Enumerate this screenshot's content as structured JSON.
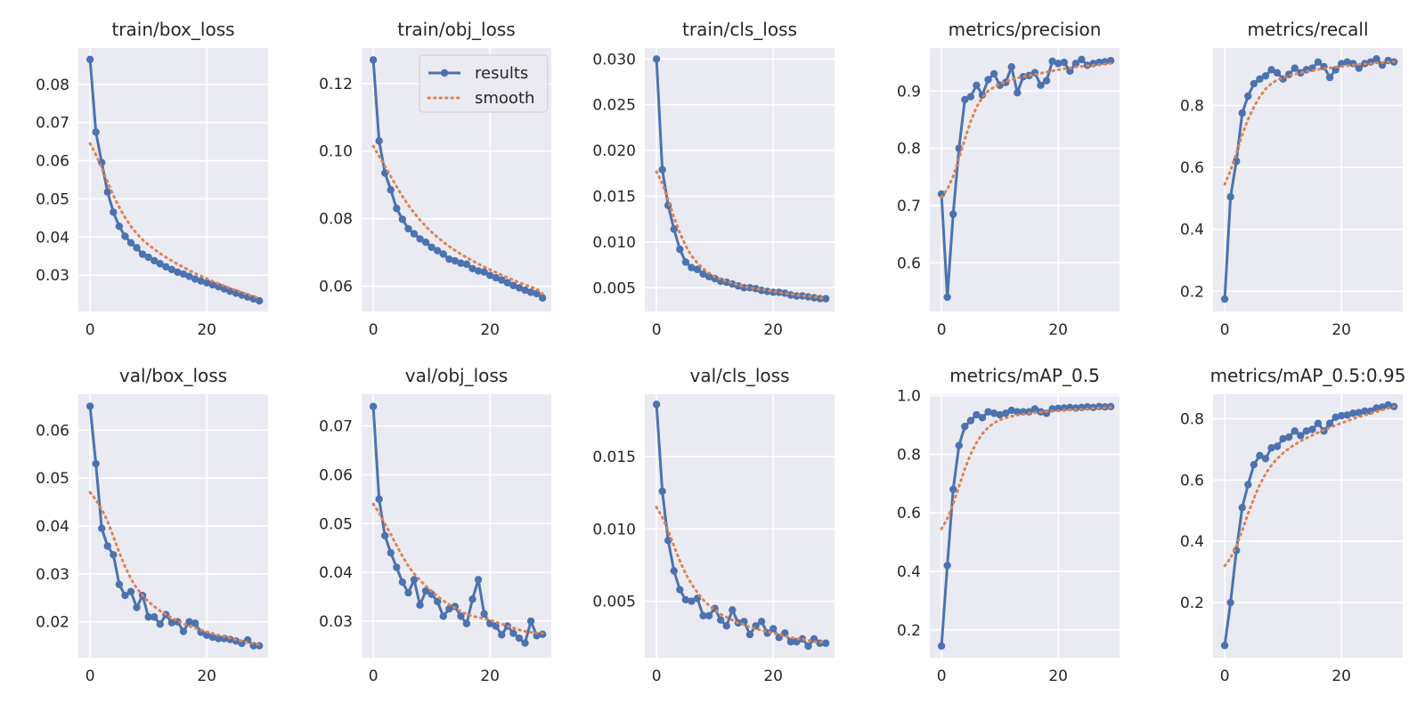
{
  "colors": {
    "results": "#4c72b0",
    "smooth": "#dd8452",
    "panel_bg": "#eaeaf2",
    "grid": "#ffffff",
    "text": "#262626"
  },
  "legend": {
    "results_label": "results",
    "smooth_label": "smooth",
    "placement": "top-right of train/obj_loss"
  },
  "chart_data": [
    {
      "type": "line",
      "title": "train/box_loss",
      "xlim": [
        -2,
        30.5
      ],
      "ylim": [
        0.0205,
        0.0895
      ],
      "xticks": [
        0,
        20
      ],
      "yticks": [
        0.03,
        0.04,
        0.05,
        0.06,
        0.07,
        0.08
      ],
      "ytick_labels": [
        "0.03",
        "0.04",
        "0.05",
        "0.06",
        "0.07",
        "0.08"
      ],
      "series": [
        {
          "name": "results",
          "values": [
            0.0865,
            0.0675,
            0.0595,
            0.0518,
            0.0465,
            0.0428,
            0.0402,
            0.0385,
            0.0372,
            0.0355,
            0.0347,
            0.0338,
            0.033,
            0.0322,
            0.0315,
            0.0308,
            0.0303,
            0.0297,
            0.029,
            0.0285,
            0.028,
            0.0275,
            0.027,
            0.0264,
            0.0258,
            0.0253,
            0.0248,
            0.0243,
            0.0238,
            0.0233
          ]
        },
        {
          "name": "smooth",
          "values": [
            0.0645,
            0.0616,
            0.0581,
            0.0544,
            0.0509,
            0.0478,
            0.0451,
            0.0428,
            0.0409,
            0.0393,
            0.038,
            0.0368,
            0.0357,
            0.0347,
            0.0338,
            0.0329,
            0.0321,
            0.0313,
            0.0305,
            0.0298,
            0.0291,
            0.0284,
            0.0278,
            0.0272,
            0.0266,
            0.026,
            0.0255,
            0.0249,
            0.0244,
            0.024
          ]
        }
      ]
    },
    {
      "type": "line",
      "title": "train/obj_loss",
      "xlim": [
        -2,
        30.5
      ],
      "ylim": [
        0.0525,
        0.1305
      ],
      "xticks": [
        0,
        20
      ],
      "yticks": [
        0.06,
        0.08,
        0.1,
        0.12
      ],
      "ytick_labels": [
        "0.06",
        "0.08",
        "0.10",
        "0.12"
      ],
      "series": [
        {
          "name": "results",
          "values": [
            0.127,
            0.103,
            0.0935,
            0.0885,
            0.083,
            0.0798,
            0.077,
            0.0755,
            0.074,
            0.073,
            0.0715,
            0.0705,
            0.0695,
            0.068,
            0.0675,
            0.0668,
            0.0665,
            0.0652,
            0.0645,
            0.0642,
            0.0632,
            0.0625,
            0.0618,
            0.061,
            0.0602,
            0.0595,
            0.0588,
            0.0582,
            0.0578,
            0.0565
          ]
        },
        {
          "name": "smooth",
          "values": [
            0.1015,
            0.0985,
            0.0955,
            0.0925,
            0.0895,
            0.0866,
            0.084,
            0.0817,
            0.0796,
            0.0777,
            0.076,
            0.0745,
            0.0731,
            0.0718,
            0.0706,
            0.0695,
            0.0685,
            0.0675,
            0.0666,
            0.0657,
            0.0649,
            0.0641,
            0.0633,
            0.0625,
            0.0618,
            0.0611,
            0.0604,
            0.0598,
            0.0592,
            0.0578
          ]
        }
      ]
    },
    {
      "type": "line",
      "title": "train/cls_loss",
      "xlim": [
        -2,
        30.5
      ],
      "ylim": [
        0.0024,
        0.0312
      ],
      "xticks": [
        0,
        20
      ],
      "yticks": [
        0.005,
        0.01,
        0.015,
        0.02,
        0.025,
        0.03
      ],
      "ytick_labels": [
        "0.005",
        "0.010",
        "0.015",
        "0.020",
        "0.025",
        "0.030"
      ],
      "series": [
        {
          "name": "results",
          "values": [
            0.03,
            0.0179,
            0.014,
            0.0114,
            0.0092,
            0.0078,
            0.0072,
            0.007,
            0.0065,
            0.0062,
            0.006,
            0.0057,
            0.0056,
            0.0054,
            0.0052,
            0.005,
            0.005,
            0.0049,
            0.0047,
            0.0046,
            0.0045,
            0.0045,
            0.0044,
            0.0042,
            0.0041,
            0.0041,
            0.004,
            0.0039,
            0.0038,
            0.0038
          ]
        },
        {
          "name": "smooth",
          "values": [
            0.0177,
            0.0164,
            0.0146,
            0.0127,
            0.011,
            0.0096,
            0.0085,
            0.0077,
            0.0071,
            0.0066,
            0.0062,
            0.0059,
            0.0057,
            0.0055,
            0.0053,
            0.0051,
            0.005,
            0.0049,
            0.0048,
            0.0047,
            0.0046,
            0.0045,
            0.0044,
            0.0043,
            0.0042,
            0.0041,
            0.0041,
            0.004,
            0.0039,
            0.0038
          ]
        }
      ]
    },
    {
      "type": "line",
      "title": "metrics/precision",
      "xlim": [
        -2,
        30.5
      ],
      "ylim": [
        0.515,
        0.975
      ],
      "xticks": [
        0,
        20
      ],
      "yticks": [
        0.6,
        0.7,
        0.8,
        0.9
      ],
      "ytick_labels": [
        "0.6",
        "0.7",
        "0.8",
        "0.9"
      ],
      "series": [
        {
          "name": "results",
          "values": [
            0.72,
            0.54,
            0.685,
            0.8,
            0.885,
            0.89,
            0.91,
            0.893,
            0.92,
            0.93,
            0.91,
            0.915,
            0.942,
            0.897,
            0.925,
            0.927,
            0.932,
            0.91,
            0.918,
            0.952,
            0.948,
            0.95,
            0.935,
            0.948,
            0.955,
            0.945,
            0.948,
            0.95,
            0.951,
            0.953
          ]
        },
        {
          "name": "smooth",
          "values": [
            0.715,
            0.728,
            0.751,
            0.782,
            0.816,
            0.847,
            0.872,
            0.889,
            0.9,
            0.907,
            0.912,
            0.916,
            0.92,
            0.923,
            0.925,
            0.927,
            0.929,
            0.931,
            0.933,
            0.935,
            0.937,
            0.939,
            0.94,
            0.942,
            0.943,
            0.944,
            0.945,
            0.946,
            0.947,
            0.948
          ]
        }
      ]
    },
    {
      "type": "line",
      "title": "metrics/recall",
      "xlim": [
        -2,
        30.5
      ],
      "ylim": [
        0.135,
        0.985
      ],
      "xticks": [
        0,
        20
      ],
      "yticks": [
        0.2,
        0.4,
        0.6,
        0.8
      ],
      "ytick_labels": [
        "0.2",
        "0.4",
        "0.6",
        "0.8"
      ],
      "series": [
        {
          "name": "results",
          "values": [
            0.175,
            0.505,
            0.62,
            0.775,
            0.83,
            0.87,
            0.885,
            0.895,
            0.915,
            0.905,
            0.885,
            0.9,
            0.92,
            0.905,
            0.915,
            0.92,
            0.94,
            0.925,
            0.89,
            0.915,
            0.935,
            0.94,
            0.935,
            0.92,
            0.935,
            0.94,
            0.95,
            0.93,
            0.945,
            0.94
          ]
        },
        {
          "name": "smooth",
          "values": [
            0.545,
            0.59,
            0.645,
            0.705,
            0.755,
            0.795,
            0.828,
            0.853,
            0.87,
            0.882,
            0.89,
            0.896,
            0.901,
            0.905,
            0.909,
            0.912,
            0.916,
            0.919,
            0.921,
            0.924,
            0.926,
            0.928,
            0.93,
            0.932,
            0.934,
            0.935,
            0.937,
            0.938,
            0.94,
            0.941
          ]
        }
      ]
    },
    {
      "type": "line",
      "title": "val/box_loss",
      "xlim": [
        -2,
        30.5
      ],
      "ylim": [
        0.0125,
        0.0675
      ],
      "xticks": [
        0,
        20
      ],
      "yticks": [
        0.02,
        0.03,
        0.04,
        0.05,
        0.06
      ],
      "ytick_labels": [
        "0.02",
        "0.03",
        "0.04",
        "0.05",
        "0.06"
      ],
      "series": [
        {
          "name": "results",
          "values": [
            0.065,
            0.053,
            0.0395,
            0.0358,
            0.034,
            0.0278,
            0.0255,
            0.0263,
            0.023,
            0.0255,
            0.021,
            0.021,
            0.0195,
            0.0215,
            0.0198,
            0.02,
            0.018,
            0.02,
            0.0197,
            0.0178,
            0.0172,
            0.0168,
            0.0165,
            0.0165,
            0.0163,
            0.016,
            0.0155,
            0.0162,
            0.015,
            0.015
          ]
        },
        {
          "name": "smooth",
          "values": [
            0.047,
            0.0455,
            0.0435,
            0.041,
            0.0378,
            0.0345,
            0.0315,
            0.029,
            0.027,
            0.0255,
            0.0242,
            0.0232,
            0.0223,
            0.0215,
            0.0208,
            0.0202,
            0.0196,
            0.0191,
            0.0187,
            0.0183,
            0.0179,
            0.0176,
            0.0172,
            0.0169,
            0.0166,
            0.0163,
            0.016,
            0.0157,
            0.0155,
            0.0152
          ]
        }
      ]
    },
    {
      "type": "line",
      "title": "val/obj_loss",
      "xlim": [
        -2,
        30.5
      ],
      "ylim": [
        0.0225,
        0.0765
      ],
      "xticks": [
        0,
        20
      ],
      "yticks": [
        0.03,
        0.04,
        0.05,
        0.06,
        0.07
      ],
      "ytick_labels": [
        "0.03",
        "0.04",
        "0.05",
        "0.06",
        "0.07"
      ],
      "series": [
        {
          "name": "results",
          "values": [
            0.074,
            0.055,
            0.0475,
            0.044,
            0.041,
            0.038,
            0.0358,
            0.0385,
            0.0333,
            0.0362,
            0.0355,
            0.034,
            0.031,
            0.0325,
            0.033,
            0.031,
            0.0295,
            0.0345,
            0.0385,
            0.0315,
            0.0295,
            0.029,
            0.0272,
            0.029,
            0.0275,
            0.0265,
            0.0255,
            0.03,
            0.027,
            0.0273
          ]
        },
        {
          "name": "smooth",
          "values": [
            0.054,
            0.0522,
            0.05,
            0.0478,
            0.0455,
            0.0433,
            0.0413,
            0.0397,
            0.0384,
            0.0372,
            0.0361,
            0.0351,
            0.0342,
            0.0334,
            0.0327,
            0.032,
            0.0314,
            0.031,
            0.0308,
            0.0305,
            0.0302,
            0.0298,
            0.0294,
            0.029,
            0.0286,
            0.0282,
            0.0279,
            0.0277,
            0.0276,
            0.0275
          ]
        }
      ]
    },
    {
      "type": "line",
      "title": "val/cls_loss",
      "xlim": [
        -2,
        30.5
      ],
      "ylim": [
        0.0011,
        0.0193
      ],
      "xticks": [
        0,
        20
      ],
      "yticks": [
        0.005,
        0.01,
        0.015
      ],
      "ytick_labels": [
        "0.005",
        "0.010",
        "0.015"
      ],
      "series": [
        {
          "name": "results",
          "values": [
            0.0186,
            0.0126,
            0.0092,
            0.0071,
            0.0058,
            0.0051,
            0.005,
            0.0052,
            0.004,
            0.004,
            0.0045,
            0.0037,
            0.0033,
            0.0044,
            0.0035,
            0.0036,
            0.0027,
            0.0033,
            0.0036,
            0.0028,
            0.0031,
            0.0025,
            0.0028,
            0.0022,
            0.0022,
            0.0024,
            0.0019,
            0.0024,
            0.0021,
            0.0021
          ]
        },
        {
          "name": "smooth",
          "values": [
            0.0115,
            0.0108,
            0.0099,
            0.0088,
            0.0078,
            0.0069,
            0.0062,
            0.0056,
            0.0051,
            0.0047,
            0.0044,
            0.0041,
            0.0039,
            0.0037,
            0.0035,
            0.0034,
            0.0032,
            0.0031,
            0.003,
            0.0029,
            0.0028,
            0.0027,
            0.0026,
            0.0025,
            0.0024,
            0.0024,
            0.0023,
            0.0022,
            0.0022,
            0.0021
          ]
        }
      ]
    },
    {
      "type": "line",
      "title": "metrics/mAP_0.5",
      "xlim": [
        -2,
        30.5
      ],
      "ylim": [
        0.105,
        1.005
      ],
      "xticks": [
        0,
        20
      ],
      "yticks": [
        0.2,
        0.4,
        0.6,
        0.8,
        1.0
      ],
      "ytick_labels": [
        "0.2",
        "0.4",
        "0.6",
        "0.8",
        "1.0"
      ],
      "series": [
        {
          "name": "results",
          "values": [
            0.145,
            0.42,
            0.68,
            0.83,
            0.895,
            0.915,
            0.935,
            0.925,
            0.945,
            0.94,
            0.935,
            0.94,
            0.95,
            0.945,
            0.945,
            0.945,
            0.955,
            0.945,
            0.94,
            0.955,
            0.957,
            0.958,
            0.96,
            0.958,
            0.96,
            0.962,
            0.96,
            0.963,
            0.962,
            0.963
          ]
        },
        {
          "name": "smooth",
          "values": [
            0.545,
            0.58,
            0.63,
            0.69,
            0.75,
            0.8,
            0.84,
            0.87,
            0.892,
            0.907,
            0.917,
            0.924,
            0.93,
            0.934,
            0.937,
            0.94,
            0.942,
            0.944,
            0.946,
            0.948,
            0.949,
            0.951,
            0.952,
            0.953,
            0.954,
            0.955,
            0.957,
            0.958,
            0.959,
            0.96
          ]
        }
      ]
    },
    {
      "type": "line",
      "title": "metrics/mAP_0.5:0.95",
      "xlim": [
        -2,
        30.5
      ],
      "ylim": [
        0.02,
        0.88
      ],
      "xticks": [
        0,
        20
      ],
      "yticks": [
        0.2,
        0.4,
        0.6,
        0.8
      ],
      "ytick_labels": [
        "0.2",
        "0.4",
        "0.6",
        "0.8"
      ],
      "series": [
        {
          "name": "results",
          "values": [
            0.06,
            0.2,
            0.37,
            0.51,
            0.585,
            0.65,
            0.68,
            0.67,
            0.705,
            0.71,
            0.735,
            0.74,
            0.76,
            0.745,
            0.76,
            0.765,
            0.785,
            0.76,
            0.785,
            0.805,
            0.81,
            0.812,
            0.818,
            0.82,
            0.825,
            0.825,
            0.835,
            0.838,
            0.845,
            0.84
          ]
        },
        {
          "name": "smooth",
          "values": [
            0.32,
            0.345,
            0.385,
            0.435,
            0.49,
            0.54,
            0.585,
            0.62,
            0.648,
            0.67,
            0.688,
            0.703,
            0.716,
            0.727,
            0.737,
            0.746,
            0.755,
            0.763,
            0.771,
            0.779,
            0.786,
            0.793,
            0.8,
            0.806,
            0.812,
            0.818,
            0.823,
            0.829,
            0.834,
            0.84
          ]
        }
      ]
    }
  ]
}
